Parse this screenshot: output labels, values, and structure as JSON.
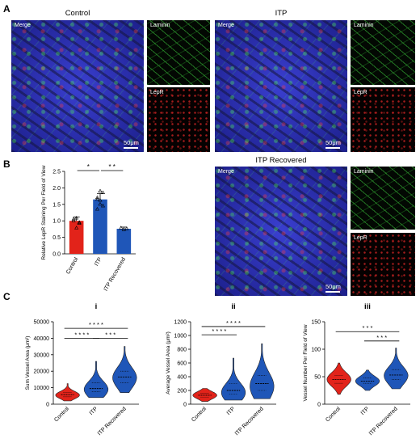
{
  "panels": {
    "A": {
      "label": "A",
      "groups": [
        {
          "title": "Control",
          "merge_label": "Merge",
          "laminin_label": "Laminin",
          "lepr_label": "LepR",
          "scale": "50μm"
        },
        {
          "title": "ITP",
          "merge_label": "Merge",
          "laminin_label": "Laminin",
          "lepr_label": "LepR",
          "scale": "50μm"
        }
      ]
    },
    "B": {
      "label": "B",
      "recovered": {
        "title": "ITP Recovered",
        "merge_label": "Merge",
        "laminin_label": "Laminin",
        "lepr_label": "LepR",
        "scale": "50μm"
      }
    },
    "C": {
      "label": "C"
    }
  },
  "colors": {
    "control": "#e2231a",
    "itp": "#1f56b8",
    "recovered": "#1f56b8"
  },
  "chart_data": [
    {
      "type": "bar",
      "panel": "B",
      "categories": [
        "Control",
        "ITP",
        "ITP Recovered"
      ],
      "values": [
        1.0,
        1.65,
        0.76
      ],
      "errors": [
        0.12,
        0.18,
        0.05
      ],
      "points": [
        [
          1.0,
          1.08,
          0.92,
          1.05,
          0.78,
          0.95
        ],
        [
          1.65,
          1.9,
          1.85,
          1.7,
          1.5,
          1.45,
          1.35,
          1.62
        ],
        [
          0.78,
          0.73,
          0.76
        ]
      ],
      "ylabel": "Relative LepR Staining Per Field of View",
      "ylim": [
        0,
        2.5
      ],
      "yticks": [
        "0.0",
        "0.5",
        "1.0",
        "1.5",
        "2.0",
        "2.5"
      ],
      "significance": [
        {
          "from": 0,
          "to": 1,
          "label": "*"
        },
        {
          "from": 1,
          "to": 2,
          "label": "* *"
        }
      ]
    },
    {
      "type": "violin",
      "panel": "i",
      "sublabel": "i",
      "categories": [
        "Control",
        "ITP",
        "ITP Recovered"
      ],
      "ylabel": "Sum Vessel Area (μm²)",
      "ylim": [
        0,
        50000
      ],
      "yticks": [
        "0",
        "10000",
        "20000",
        "30000",
        "40000",
        "50000"
      ],
      "distributions": [
        {
          "min": 2000,
          "q1": 4500,
          "median": 5800,
          "q3": 7000,
          "max": 12500,
          "mode": 5500
        },
        {
          "min": 4000,
          "q1": 7500,
          "median": 9500,
          "q3": 13000,
          "max": 26000,
          "mode": 9000
        },
        {
          "min": 7000,
          "q1": 13000,
          "median": 16500,
          "q3": 20000,
          "max": 35000,
          "mode": 16000
        }
      ],
      "significance": [
        {
          "from": 0,
          "to": 2,
          "label": "* * * *",
          "y": 46000
        },
        {
          "from": 0,
          "to": 1,
          "label": "* * * *",
          "y": 40000
        },
        {
          "from": 1,
          "to": 2,
          "label": "* * *",
          "y": 40000
        }
      ]
    },
    {
      "type": "violin",
      "panel": "ii",
      "sublabel": "ii",
      "categories": [
        "Control",
        "ITP",
        "ITP Recovered"
      ],
      "ylabel": "Average Vessel Area (μm²)",
      "ylim": [
        0,
        1200
      ],
      "yticks": [
        "0",
        "200",
        "400",
        "600",
        "800",
        "1000",
        "1200"
      ],
      "distributions": [
        {
          "min": 40,
          "q1": 100,
          "median": 130,
          "q3": 160,
          "max": 230,
          "mode": 130
        },
        {
          "min": 60,
          "q1": 150,
          "median": 200,
          "q3": 300,
          "max": 670,
          "mode": 170
        },
        {
          "min": 80,
          "q1": 200,
          "median": 300,
          "q3": 420,
          "max": 880,
          "mode": 260
        }
      ],
      "significance": [
        {
          "from": 0,
          "to": 2,
          "label": "* * * *",
          "y": 1130
        },
        {
          "from": 0,
          "to": 1,
          "label": "* * * *",
          "y": 1010
        }
      ]
    },
    {
      "type": "violin",
      "panel": "iii",
      "sublabel": "iii",
      "categories": [
        "Control",
        "ITP",
        "ITP Recovered"
      ],
      "ylabel": "Vessel Number Per Field of View",
      "ylim": [
        0,
        150
      ],
      "yticks": [
        "0",
        "50",
        "100",
        "150"
      ],
      "distributions": [
        {
          "min": 18,
          "q1": 38,
          "median": 45,
          "q3": 52,
          "max": 75,
          "mode": 45
        },
        {
          "min": 25,
          "q1": 38,
          "median": 42,
          "q3": 48,
          "max": 62,
          "mode": 42
        },
        {
          "min": 28,
          "q1": 45,
          "median": 53,
          "q3": 63,
          "max": 102,
          "mode": 52
        }
      ],
      "significance": [
        {
          "from": 0,
          "to": 2,
          "label": "* * *",
          "y": 132
        },
        {
          "from": 1,
          "to": 2,
          "label": "* * *",
          "y": 115
        }
      ]
    }
  ]
}
